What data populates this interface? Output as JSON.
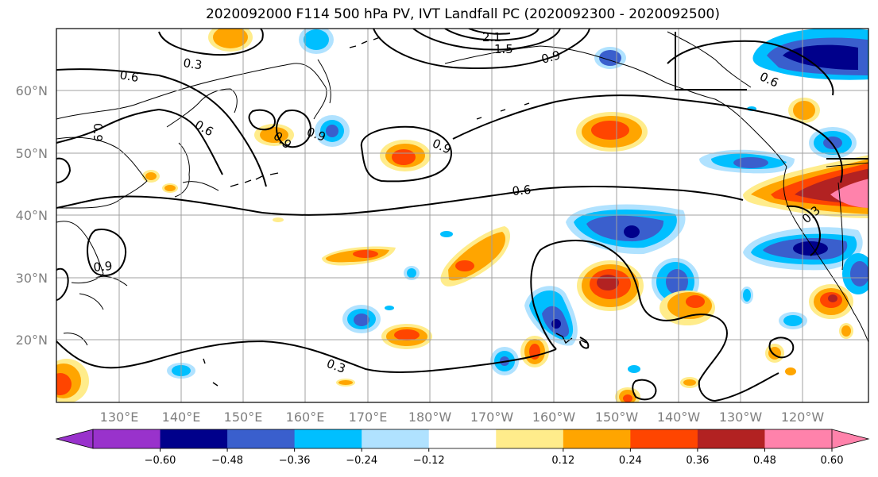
{
  "title": "2020092000 F114 500 hPa PV, IVT Landfall PC (2020092300 - 2020092500)",
  "map": {
    "lat_labels": [
      "60°N",
      "50°N",
      "40°N",
      "30°N",
      "20°N"
    ],
    "lon_labels": [
      "130°E",
      "140°E",
      "150°E",
      "160°E",
      "170°E",
      "180°W",
      "170°W",
      "160°W",
      "150°W",
      "140°W",
      "130°W",
      "120°W"
    ],
    "contour_labels": [
      "0.3",
      "0.6",
      "0.9",
      "0.6",
      "0.9",
      "0.9",
      "0.6",
      "0.9",
      "2.1",
      "1.5",
      "0.9",
      "0.6",
      "0.3",
      "0.9",
      "0.3"
    ],
    "colors": {
      "neg_darkest": "#9932CC",
      "neg_1": "#00008B",
      "neg_2": "#3A5FCD",
      "neg_3": "#00BFFF",
      "neg_4": "#B0E2FF",
      "pos_1": "#FFEC8B",
      "pos_2": "#FFA500",
      "pos_3": "#FF4500",
      "pos_4": "#B22222",
      "pos_darkest": "#FF82AB"
    }
  },
  "colorbar": {
    "tick_labels": [
      "−0.60",
      "−0.48",
      "−0.36",
      "−0.24",
      "−0.12",
      "0.12",
      "0.24",
      "0.36",
      "0.48",
      "0.60"
    ],
    "colors": [
      "#9932CC",
      "#00008B",
      "#3A5FCD",
      "#00BFFF",
      "#B0E2FF",
      "#FFFFFF",
      "#FFEC8B",
      "#FFA500",
      "#FF4500",
      "#B22222",
      "#FF82AB"
    ]
  }
}
